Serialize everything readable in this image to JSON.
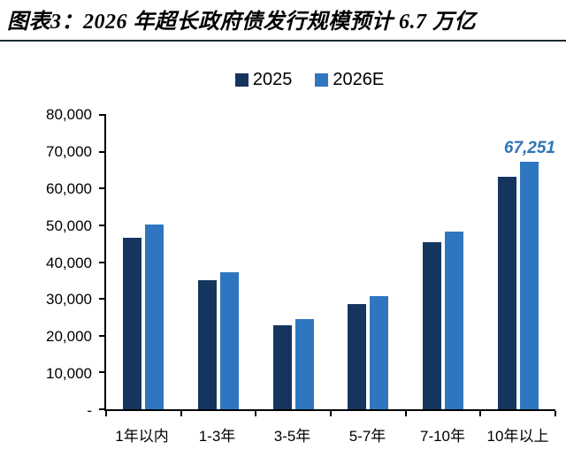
{
  "chart_data": {
    "type": "bar",
    "title": "图表3：2026 年超长政府债发行规模预计 6.7 万亿",
    "categories": [
      "1年以内",
      "1-3年",
      "3-5年",
      "5-7年",
      "7-10年",
      "10年以上"
    ],
    "series": [
      {
        "name": "2025",
        "color": "#14365e",
        "values": [
          46500,
          35000,
          22800,
          28700,
          45400,
          63200
        ]
      },
      {
        "name": "2026E",
        "color": "#2e77c0",
        "values": [
          50100,
          37300,
          24400,
          30800,
          48200,
          67251
        ]
      }
    ],
    "xlabel": "",
    "ylabel": "",
    "ylim": [
      0,
      80000
    ],
    "ytick_step": 10000,
    "ytick_labels": [
      "-",
      "10,000",
      "20,000",
      "30,000",
      "40,000",
      "50,000",
      "60,000",
      "70,000",
      "80,000"
    ],
    "grid": false,
    "legend_position": "top",
    "annotation": {
      "text": "67,251",
      "value": 67251,
      "series": "2026E",
      "category": "10年以上",
      "color": "#2e75b6"
    }
  },
  "colors": {
    "divider": "#1d2a33",
    "axis": "#000000",
    "title_text": "#000000"
  }
}
